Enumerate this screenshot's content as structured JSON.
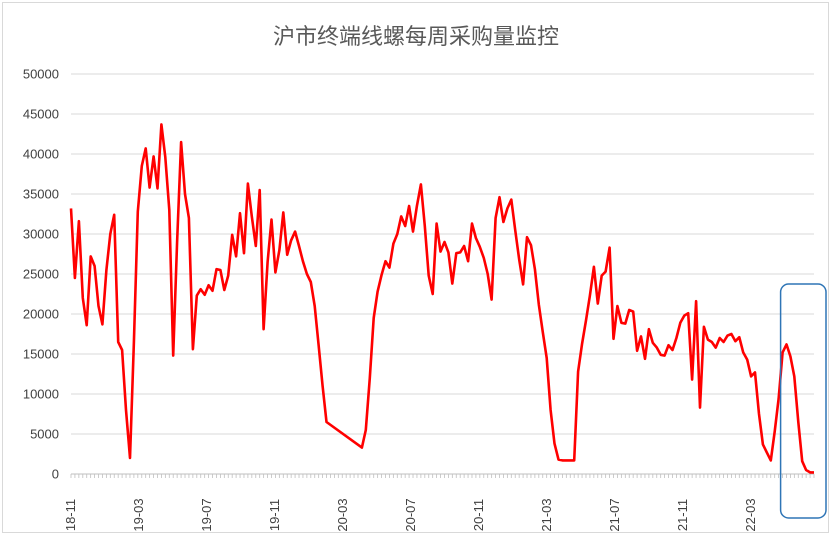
{
  "chart_data": {
    "type": "line",
    "title": "沪市终端线螺每周采购量监控",
    "xlabel": "",
    "ylabel": "",
    "ylim": [
      0,
      50000
    ],
    "yticks": [
      0,
      5000,
      10000,
      15000,
      20000,
      25000,
      30000,
      35000,
      40000,
      45000,
      50000
    ],
    "ytick_labels": [
      "0",
      "5000",
      "10000",
      "15000",
      "20000",
      "25000",
      "30000",
      "35000",
      "40000",
      "45000",
      "50000"
    ],
    "xtick_labels": [
      "18-11",
      "19-03",
      "19-07",
      "19-11",
      "20-03",
      "20-07",
      "20-11",
      "21-03",
      "21-07",
      "21-11",
      "22-03"
    ],
    "grid": true,
    "legend": "none",
    "highlight": "rounded box around the final weeks (22-03 onward)",
    "colors": {
      "series": "#ff0000",
      "highlight_box": "#2e75b6",
      "grid": "#d9d9d9"
    },
    "series": [
      {
        "points": [
          [
            0,
            33200
          ],
          [
            1,
            24500
          ],
          [
            2,
            31600
          ],
          [
            3,
            22000
          ],
          [
            4,
            18600
          ],
          [
            5,
            27200
          ],
          [
            6,
            26000
          ],
          [
            7,
            21000
          ],
          [
            8,
            18700
          ],
          [
            9,
            25500
          ],
          [
            10,
            30000
          ],
          [
            11,
            32400
          ],
          [
            12,
            16500
          ],
          [
            13,
            15500
          ],
          [
            14,
            8000
          ],
          [
            15,
            2000
          ],
          [
            16,
            16500
          ],
          [
            17,
            32800
          ],
          [
            18,
            38500
          ],
          [
            19,
            40700
          ],
          [
            20,
            35800
          ],
          [
            21,
            39700
          ],
          [
            22,
            35700
          ],
          [
            23,
            43700
          ],
          [
            24,
            39600
          ],
          [
            25,
            33000
          ],
          [
            26,
            14800
          ],
          [
            27,
            29000
          ],
          [
            28,
            41500
          ],
          [
            29,
            35000
          ],
          [
            30,
            32000
          ],
          [
            31,
            15600
          ],
          [
            32,
            22300
          ],
          [
            33,
            23100
          ],
          [
            34,
            22400
          ],
          [
            35,
            23600
          ],
          [
            36,
            22900
          ],
          [
            37,
            25600
          ],
          [
            38,
            25500
          ],
          [
            39,
            23000
          ],
          [
            40,
            24800
          ],
          [
            41,
            29900
          ],
          [
            42,
            27200
          ],
          [
            43,
            32600
          ],
          [
            44,
            27600
          ],
          [
            45,
            36300
          ],
          [
            46,
            32200
          ],
          [
            47,
            28500
          ],
          [
            48,
            35500
          ],
          [
            49,
            18100
          ],
          [
            50,
            26500
          ],
          [
            51,
            31800
          ],
          [
            52,
            25200
          ],
          [
            53,
            28000
          ],
          [
            54,
            32700
          ],
          [
            55,
            27400
          ],
          [
            56,
            29200
          ],
          [
            57,
            30300
          ],
          [
            58,
            28500
          ],
          [
            59,
            26600
          ],
          [
            60,
            25000
          ],
          [
            61,
            24000
          ],
          [
            62,
            21000
          ],
          [
            63,
            16000
          ],
          [
            64,
            11000
          ],
          [
            65,
            6500
          ],
          [
            74,
            3300
          ],
          [
            75,
            5500
          ],
          [
            76,
            12000
          ],
          [
            77,
            19500
          ],
          [
            78,
            22800
          ],
          [
            79,
            24900
          ],
          [
            80,
            26600
          ],
          [
            81,
            25800
          ],
          [
            82,
            28800
          ],
          [
            83,
            30000
          ],
          [
            84,
            32200
          ],
          [
            85,
            31000
          ],
          [
            86,
            33500
          ],
          [
            87,
            30300
          ],
          [
            88,
            33500
          ],
          [
            89,
            36200
          ],
          [
            90,
            31000
          ],
          [
            91,
            24800
          ],
          [
            92,
            22500
          ],
          [
            93,
            31300
          ],
          [
            94,
            27800
          ],
          [
            95,
            29000
          ],
          [
            96,
            27700
          ],
          [
            97,
            23800
          ],
          [
            98,
            27600
          ],
          [
            99,
            27700
          ],
          [
            100,
            28500
          ],
          [
            101,
            26600
          ],
          [
            102,
            31300
          ],
          [
            103,
            29500
          ],
          [
            104,
            28400
          ],
          [
            105,
            27000
          ],
          [
            106,
            25000
          ],
          [
            107,
            21800
          ],
          [
            108,
            32000
          ],
          [
            109,
            34600
          ],
          [
            110,
            31500
          ],
          [
            111,
            33200
          ],
          [
            112,
            34300
          ],
          [
            113,
            30500
          ],
          [
            114,
            26800
          ],
          [
            115,
            23700
          ],
          [
            116,
            29600
          ],
          [
            117,
            28600
          ],
          [
            118,
            25600
          ],
          [
            119,
            21200
          ],
          [
            120,
            17800
          ],
          [
            121,
            14500
          ],
          [
            122,
            8000
          ],
          [
            123,
            3800
          ],
          [
            124,
            1800
          ],
          [
            125,
            1700
          ],
          [
            128,
            1700
          ],
          [
            129,
            12800
          ],
          [
            130,
            16300
          ],
          [
            131,
            19200
          ],
          [
            132,
            22300
          ],
          [
            133,
            25900
          ],
          [
            134,
            21300
          ],
          [
            135,
            24800
          ],
          [
            136,
            25300
          ],
          [
            137,
            28300
          ],
          [
            138,
            16900
          ],
          [
            139,
            21000
          ],
          [
            140,
            18900
          ],
          [
            141,
            18800
          ],
          [
            142,
            20500
          ],
          [
            143,
            20300
          ],
          [
            144,
            15400
          ],
          [
            145,
            17200
          ],
          [
            146,
            14400
          ],
          [
            147,
            18100
          ],
          [
            148,
            16400
          ],
          [
            149,
            15800
          ],
          [
            150,
            14900
          ],
          [
            151,
            14800
          ],
          [
            152,
            16100
          ],
          [
            153,
            15500
          ],
          [
            154,
            17000
          ],
          [
            155,
            18900
          ],
          [
            156,
            19800
          ],
          [
            157,
            20100
          ],
          [
            158,
            11800
          ],
          [
            159,
            21600
          ],
          [
            160,
            8300
          ],
          [
            161,
            18400
          ],
          [
            162,
            16800
          ],
          [
            163,
            16500
          ],
          [
            164,
            15800
          ],
          [
            165,
            17000
          ],
          [
            166,
            16500
          ],
          [
            167,
            17300
          ],
          [
            168,
            17500
          ],
          [
            169,
            16600
          ],
          [
            170,
            17100
          ],
          [
            171,
            15200
          ],
          [
            172,
            14300
          ],
          [
            173,
            12200
          ],
          [
            174,
            12700
          ],
          [
            175,
            7500
          ],
          [
            176,
            3700
          ],
          [
            177,
            2700
          ],
          [
            178,
            1700
          ],
          [
            179,
            5300
          ],
          [
            180,
            9400
          ],
          [
            181,
            15200
          ],
          [
            182,
            16200
          ],
          [
            183,
            14700
          ],
          [
            184,
            12200
          ],
          [
            185,
            6500
          ],
          [
            186,
            1600
          ],
          [
            187,
            500
          ],
          [
            188,
            200
          ],
          [
            189,
            200
          ]
        ]
      }
    ]
  }
}
